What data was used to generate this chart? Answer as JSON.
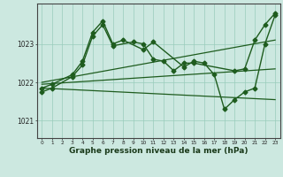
{
  "background_color": "#cce8e0",
  "grid_color": "#99ccbb",
  "line_color": "#1e5c1e",
  "xlabel": "Graphe pression niveau de la mer (hPa)",
  "xlabel_fontsize": 6.5,
  "ylabel_values": [
    1021,
    1022,
    1023
  ],
  "ylabel_labels": [
    "1021",
    "1022",
    "1023"
  ],
  "xlim": [
    -0.5,
    23.5
  ],
  "ylim": [
    1020.55,
    1024.05
  ],
  "xticks": [
    0,
    1,
    2,
    3,
    4,
    5,
    6,
    7,
    8,
    9,
    10,
    11,
    12,
    13,
    14,
    15,
    16,
    17,
    18,
    19,
    20,
    21,
    22,
    23
  ],
  "series": [
    {
      "x": [
        0,
        1,
        3,
        4,
        5,
        6,
        7,
        8,
        10,
        11,
        14,
        15,
        16,
        17,
        18,
        19,
        20,
        21,
        22,
        23
      ],
      "y": [
        1021.85,
        1021.95,
        1022.2,
        1022.55,
        1023.3,
        1023.6,
        1023.0,
        1023.1,
        1022.85,
        1023.05,
        1022.4,
        1022.55,
        1022.5,
        1022.2,
        1021.3,
        1021.55,
        1021.75,
        1021.85,
        1023.0,
        1023.75
      ],
      "marker": "D",
      "markersize": 2.5,
      "linewidth": 1.0
    },
    {
      "x": [
        0,
        1,
        3,
        4,
        5,
        6,
        7,
        9,
        10,
        11,
        12,
        13,
        14,
        15,
        19,
        20,
        21,
        22,
        23
      ],
      "y": [
        1021.75,
        1021.85,
        1022.15,
        1022.45,
        1023.2,
        1023.5,
        1022.95,
        1023.05,
        1023.0,
        1022.6,
        1022.55,
        1022.3,
        1022.5,
        1022.5,
        1022.3,
        1022.35,
        1023.1,
        1023.5,
        1023.8
      ],
      "marker": "D",
      "markersize": 2.5,
      "linewidth": 1.0
    },
    {
      "x": [
        0,
        23
      ],
      "y": [
        1022.0,
        1023.1
      ],
      "marker": null,
      "markersize": 0,
      "linewidth": 0.9
    },
    {
      "x": [
        0,
        23
      ],
      "y": [
        1021.95,
        1022.35
      ],
      "marker": null,
      "markersize": 0,
      "linewidth": 0.9
    },
    {
      "x": [
        0,
        23
      ],
      "y": [
        1021.85,
        1021.55
      ],
      "marker": null,
      "markersize": 0,
      "linewidth": 0.9
    }
  ]
}
